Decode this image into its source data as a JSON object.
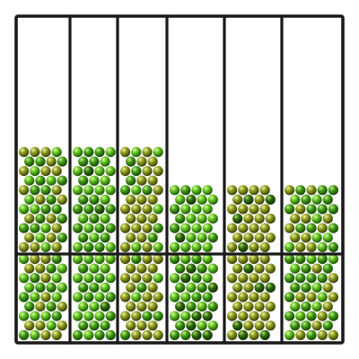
{
  "game": {
    "rows": 2,
    "columns": [
      {
        "upper_fill": 0.45,
        "ball_tint": "mixed-green"
      },
      {
        "upper_fill": 0.45,
        "ball_tint": "bright-green"
      },
      {
        "upper_fill": 0.45,
        "ball_tint": "olive-green"
      },
      {
        "upper_fill": 0.32,
        "ball_tint": "bright-green"
      },
      {
        "upper_fill": 0.32,
        "ball_tint": "olive"
      },
      {
        "upper_fill": 0.32,
        "ball_tint": "mixed-green"
      }
    ],
    "lower_fill": 1.0
  },
  "colors": {
    "frame": "#1a1a1a",
    "background": "#ffffff",
    "ball_bright": "#5fbf1f",
    "ball_green": "#3f9a12",
    "ball_olive": "#8a9a1a",
    "ball_dark": "#2f6a08"
  }
}
